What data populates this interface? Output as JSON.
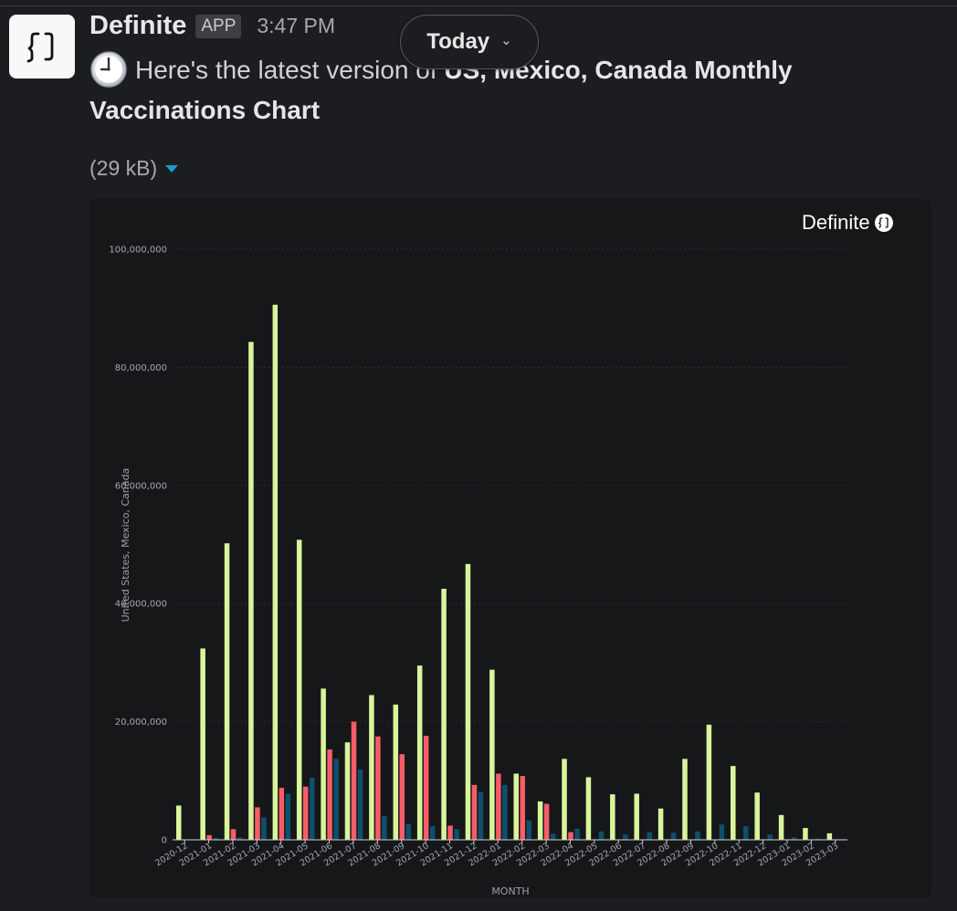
{
  "message": {
    "sender": "Definite",
    "badge": "APP",
    "time": "3:47 PM",
    "text_prefix": "Here's the latest version of ",
    "text_bold": "US, Mexico, Canada Monthly Vaccinations Chart",
    "emoji": "clock-icon"
  },
  "date_divider": {
    "label": "Today",
    "chevron": "⌄"
  },
  "attachment": {
    "size": "(29 kB)"
  },
  "chart_card": {
    "brand": "Definite"
  },
  "chart_data": {
    "type": "bar",
    "xlabel": "MONTH",
    "ylabel": "United States, Mexico, Canada",
    "ylim": [
      0,
      100000000
    ],
    "yticks": [
      0,
      20000000,
      40000000,
      60000000,
      80000000,
      100000000
    ],
    "ytick_labels": [
      "0",
      "20,000,000",
      "40,000,000",
      "60,000,000",
      "80,000,000",
      "100,000,000"
    ],
    "grid": true,
    "legend": "none",
    "categories": [
      "2020-12",
      "2021-01",
      "2021-02",
      "2021-03",
      "2021-04",
      "2021-05",
      "2021-06",
      "2021-07",
      "2021-08",
      "2021-09",
      "2021-10",
      "2021-11",
      "2021-12",
      "2022-01",
      "2022-02",
      "2022-03",
      "2022-04",
      "2022-05",
      "2022-06",
      "2022-07",
      "2022-08",
      "2022-09",
      "2022-10",
      "2022-11",
      "2022-12",
      "2023-01",
      "2023-02",
      "2023-03"
    ],
    "series": [
      {
        "color": "#d9f59b",
        "values": [
          5800000,
          32400000,
          50200000,
          84300000,
          90600000,
          50800000,
          25600000,
          16500000,
          24500000,
          22900000,
          29500000,
          42500000,
          46700000,
          28800000,
          11200000,
          6500000,
          13700000,
          10600000,
          7700000,
          7800000,
          5300000,
          13700000,
          19500000,
          12500000,
          8000000,
          4200000,
          2000000,
          1100000
        ]
      },
      {
        "color": "#f75c68",
        "values": [
          0,
          800000,
          1800000,
          5500000,
          8800000,
          9000000,
          15300000,
          20000000,
          17500000,
          14500000,
          17600000,
          2400000,
          9300000,
          11200000,
          10800000,
          6100000,
          1300000,
          0,
          0,
          0,
          0,
          0,
          0,
          0,
          0,
          0,
          0,
          0
        ]
      },
      {
        "color": "#0f4f6e",
        "values": [
          0,
          300000,
          400000,
          3800000,
          7800000,
          10500000,
          13700000,
          11900000,
          4000000,
          2700000,
          2300000,
          1800000,
          8100000,
          9300000,
          3300000,
          1000000,
          1900000,
          1400000,
          900000,
          1300000,
          1200000,
          1400000,
          2600000,
          2300000,
          900000,
          400000,
          200000,
          100000
        ]
      }
    ]
  }
}
